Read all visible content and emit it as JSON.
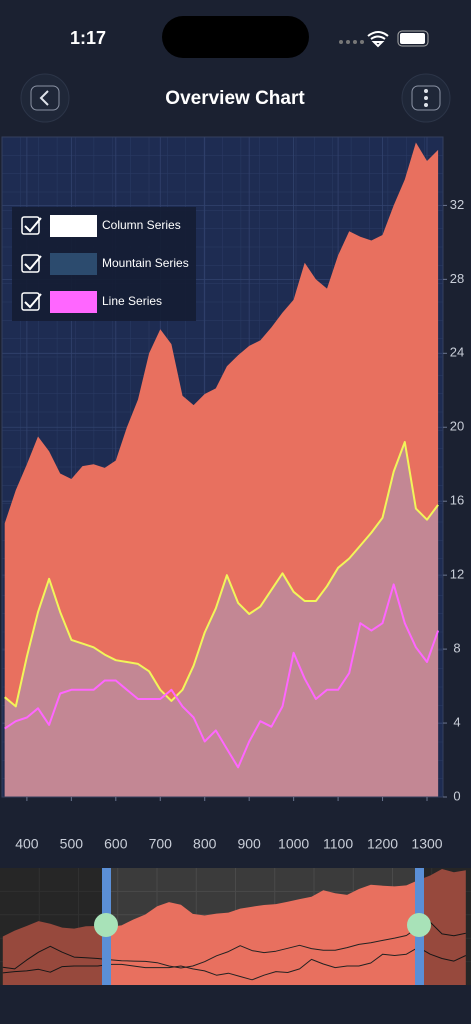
{
  "status_bar": {
    "time": "1:17"
  },
  "header": {
    "title": "Overview Chart"
  },
  "chart_data": {
    "type": "area",
    "x": [
      350,
      375,
      400,
      425,
      450,
      475,
      500,
      525,
      550,
      575,
      600,
      625,
      650,
      675,
      700,
      725,
      750,
      775,
      800,
      825,
      850,
      875,
      900,
      925,
      950,
      975,
      1000,
      1025,
      1050,
      1075,
      1100,
      1125,
      1150,
      1175,
      1200,
      1225,
      1250,
      1275,
      1300,
      1325
    ],
    "xlim": [
      344,
      1336
    ],
    "xticks": [
      400,
      500,
      600,
      700,
      800,
      900,
      1000,
      1100,
      1200,
      1300
    ],
    "ylim": [
      0,
      35.7
    ],
    "yticks": [
      0,
      4,
      8,
      12,
      16,
      20,
      24,
      28,
      32
    ],
    "grid": true,
    "legend": "top-left",
    "series": [
      {
        "name": "Column Series",
        "color": "#ffffff",
        "fill": "#e8705f",
        "stroke": "#e8705f",
        "values": [
          14.8,
          16.6,
          18.0,
          19.5,
          18.7,
          17.5,
          17.2,
          17.9,
          18.0,
          17.8,
          18.2,
          20.0,
          21.5,
          24.0,
          25.3,
          24.5,
          21.7,
          21.2,
          21.8,
          22.1,
          23.3,
          23.9,
          24.4,
          24.7,
          25.4,
          26.2,
          26.9,
          28.9,
          28.0,
          27.5,
          29.3,
          30.6,
          30.3,
          30.1,
          30.4,
          32.0,
          33.4,
          35.4,
          34.4,
          35.0
        ]
      },
      {
        "name": "Mountain Series",
        "color": "#2c4b6e",
        "fill": "#a49ac0",
        "stroke": "#f2f55a",
        "values": [
          5.4,
          4.9,
          7.6,
          10.0,
          11.8,
          10.0,
          8.5,
          8.3,
          8.1,
          7.7,
          7.4,
          7.3,
          7.2,
          6.8,
          5.8,
          5.2,
          5.8,
          7.1,
          8.9,
          10.2,
          12.0,
          10.5,
          9.9,
          10.3,
          11.2,
          12.1,
          11.1,
          10.6,
          10.6,
          11.4,
          12.4,
          12.9,
          13.6,
          14.3,
          15.1,
          17.6,
          19.2,
          15.6,
          15.0,
          15.8
        ]
      },
      {
        "name": "Line Series",
        "color": "#ff66ff",
        "fill": "none",
        "stroke": "#ff66ff",
        "values": [
          3.7,
          4.1,
          4.3,
          4.8,
          3.9,
          5.6,
          5.8,
          5.8,
          5.8,
          6.3,
          6.3,
          5.8,
          5.3,
          5.3,
          5.3,
          5.8,
          4.9,
          4.3,
          3.0,
          3.6,
          2.6,
          1.6,
          3.0,
          4.1,
          3.8,
          4.9,
          7.8,
          6.4,
          5.3,
          5.8,
          5.8,
          6.7,
          9.4,
          9.0,
          9.4,
          11.5,
          9.4,
          8.1,
          7.3,
          9.0
        ]
      }
    ]
  }
}
